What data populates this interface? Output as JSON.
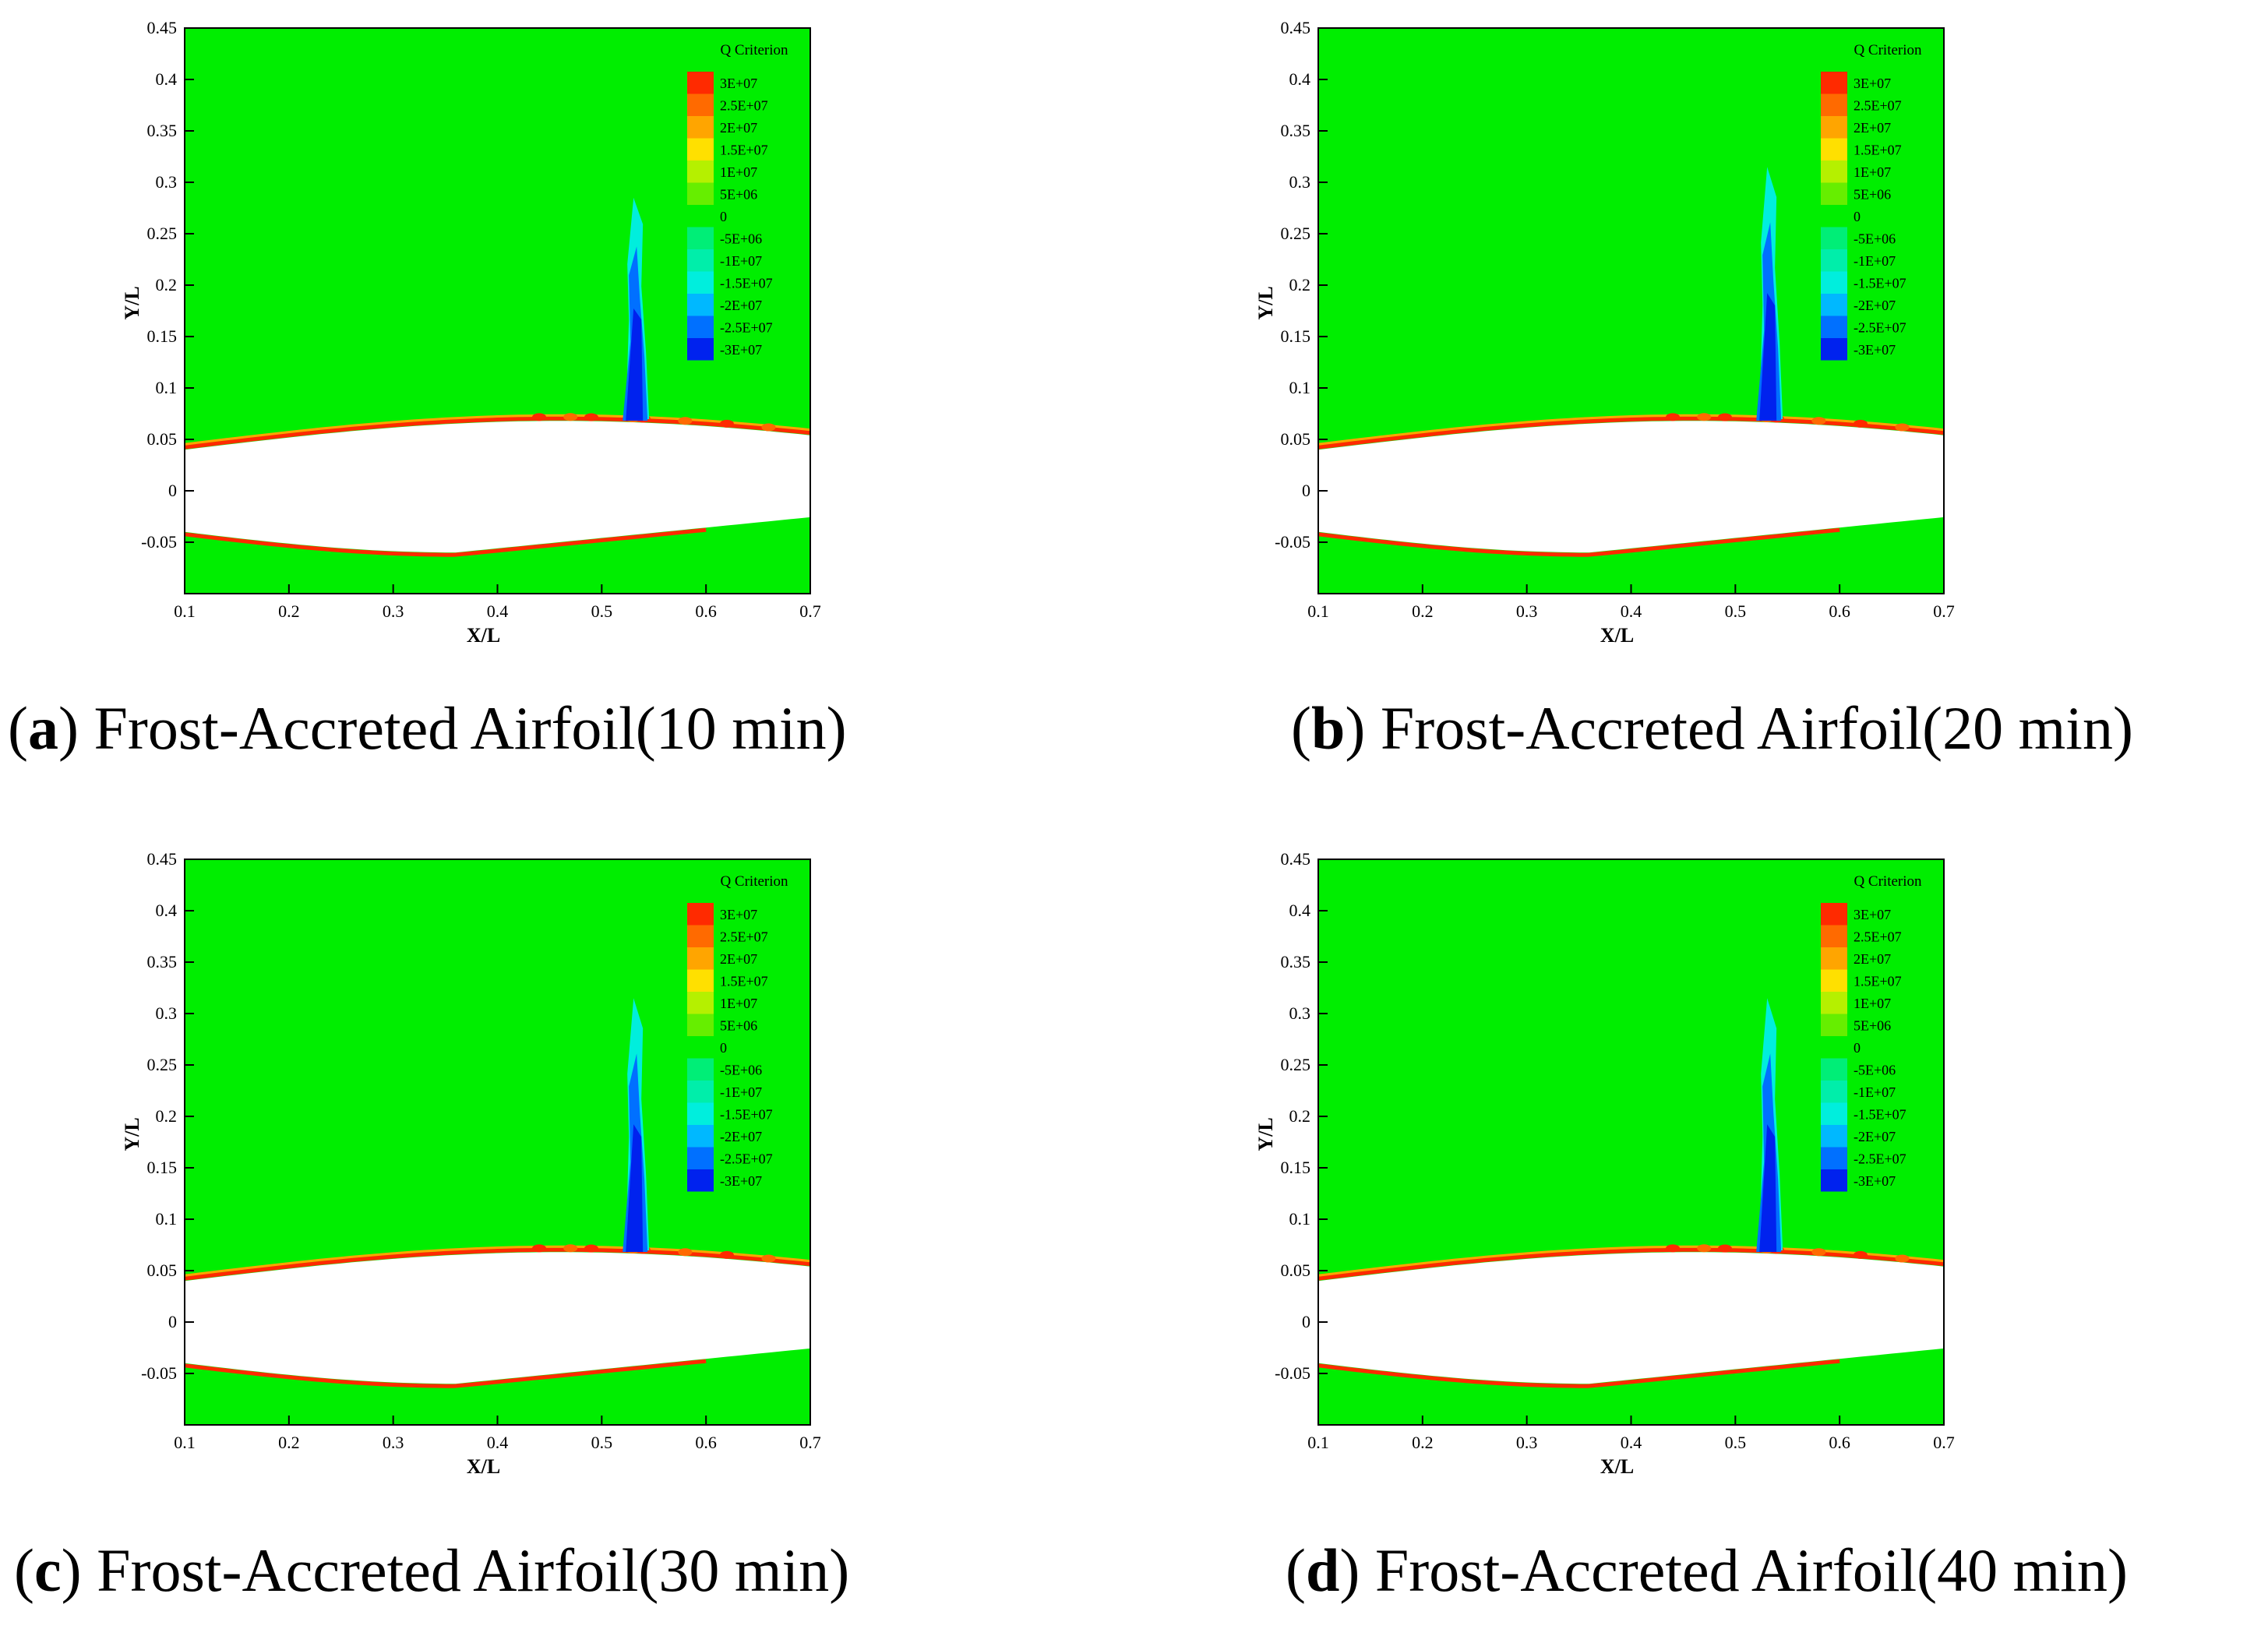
{
  "figure_colors": {
    "background": "#00ee00",
    "airfoil": "#ffffff"
  },
  "chart_data": [
    {
      "type": "contour",
      "panel_letter": "a",
      "caption": "Frost-Accreted Airfoil(10 min)",
      "xlabel": "X/L",
      "ylabel": "Y/L",
      "xlim": [
        0.1,
        0.7
      ],
      "ylim": [
        -0.1,
        0.45
      ],
      "x_ticks": [
        "0.1",
        "0.2",
        "0.3",
        "0.4",
        "0.5",
        "0.6",
        "0.7"
      ],
      "y_ticks": [
        "-0.05",
        "0",
        "0.05",
        "0.1",
        "0.15",
        "0.2",
        "0.25",
        "0.3",
        "0.35",
        "0.4",
        "0.45"
      ],
      "vortex_top_y": 0.285,
      "legend": {
        "title": "Q Criterion",
        "levels": [
          "3E+07",
          "2.5E+07",
          "2E+07",
          "1.5E+07",
          "1E+07",
          "5E+06",
          "0",
          "-5E+06",
          "-1E+07",
          "-1.5E+07",
          "-2E+07",
          "-2.5E+07",
          "-3E+07"
        ],
        "colors": [
          "#ff2a00",
          "#ff6a00",
          "#ffa500",
          "#ffe000",
          "#b5f000",
          "#66ee00",
          "#00ee00",
          "#00ee77",
          "#00eeaa",
          "#00eedd",
          "#00b8ff",
          "#0070ff",
          "#0022ee"
        ]
      }
    },
    {
      "type": "contour",
      "panel_letter": "b",
      "caption": "Frost-Accreted Airfoil(20 min)",
      "xlabel": "X/L",
      "ylabel": "Y/L",
      "xlim": [
        0.1,
        0.7
      ],
      "ylim": [
        -0.1,
        0.45
      ],
      "x_ticks": [
        "0.1",
        "0.2",
        "0.3",
        "0.4",
        "0.5",
        "0.6",
        "0.7"
      ],
      "y_ticks": [
        "-0.05",
        "0",
        "0.05",
        "0.1",
        "0.15",
        "0.2",
        "0.25",
        "0.3",
        "0.35",
        "0.4",
        "0.45"
      ],
      "vortex_top_y": 0.315,
      "legend": {
        "title": "Q Criterion",
        "levels": [
          "3E+07",
          "2.5E+07",
          "2E+07",
          "1.5E+07",
          "1E+07",
          "5E+06",
          "0",
          "-5E+06",
          "-1E+07",
          "-1.5E+07",
          "-2E+07",
          "-2.5E+07",
          "-3E+07"
        ],
        "colors": [
          "#ff2a00",
          "#ff6a00",
          "#ffa500",
          "#ffe000",
          "#b5f000",
          "#66ee00",
          "#00ee00",
          "#00ee77",
          "#00eeaa",
          "#00eedd",
          "#00b8ff",
          "#0070ff",
          "#0022ee"
        ]
      }
    },
    {
      "type": "contour",
      "panel_letter": "c",
      "caption": "Frost-Accreted Airfoil(30 min)",
      "xlabel": "X/L",
      "ylabel": "Y/L",
      "xlim": [
        0.1,
        0.7
      ],
      "ylim": [
        -0.1,
        0.45
      ],
      "x_ticks": [
        "0.1",
        "0.2",
        "0.3",
        "0.4",
        "0.5",
        "0.6",
        "0.7"
      ],
      "y_ticks": [
        "-0.05",
        "0",
        "0.05",
        "0.1",
        "0.15",
        "0.2",
        "0.25",
        "0.3",
        "0.35",
        "0.4",
        "0.45"
      ],
      "vortex_top_y": 0.315,
      "legend": {
        "title": "Q Criterion",
        "levels": [
          "3E+07",
          "2.5E+07",
          "2E+07",
          "1.5E+07",
          "1E+07",
          "5E+06",
          "0",
          "-5E+06",
          "-1E+07",
          "-1.5E+07",
          "-2E+07",
          "-2.5E+07",
          "-3E+07"
        ],
        "colors": [
          "#ff2a00",
          "#ff6a00",
          "#ffa500",
          "#ffe000",
          "#b5f000",
          "#66ee00",
          "#00ee00",
          "#00ee77",
          "#00eeaa",
          "#00eedd",
          "#00b8ff",
          "#0070ff",
          "#0022ee"
        ]
      }
    },
    {
      "type": "contour",
      "panel_letter": "d",
      "caption": "Frost-Accreted Airfoil(40 min)",
      "xlabel": "X/L",
      "ylabel": "Y/L",
      "xlim": [
        0.1,
        0.7
      ],
      "ylim": [
        -0.1,
        0.45
      ],
      "x_ticks": [
        "0.1",
        "0.2",
        "0.3",
        "0.4",
        "0.5",
        "0.6",
        "0.7"
      ],
      "y_ticks": [
        "-0.05",
        "0",
        "0.05",
        "0.1",
        "0.15",
        "0.2",
        "0.25",
        "0.3",
        "0.35",
        "0.4",
        "0.45"
      ],
      "vortex_top_y": 0.315,
      "legend": {
        "title": "Q Criterion",
        "levels": [
          "3E+07",
          "2.5E+07",
          "2E+07",
          "1.5E+07",
          "1E+07",
          "5E+06",
          "0",
          "-5E+06",
          "-1E+07",
          "-1.5E+07",
          "-2E+07",
          "-2.5E+07",
          "-3E+07"
        ],
        "colors": [
          "#ff2a00",
          "#ff6a00",
          "#ffa500",
          "#ffe000",
          "#b5f000",
          "#66ee00",
          "#00ee00",
          "#00ee77",
          "#00eeaa",
          "#00eedd",
          "#00b8ff",
          "#0070ff",
          "#0022ee"
        ]
      }
    }
  ]
}
